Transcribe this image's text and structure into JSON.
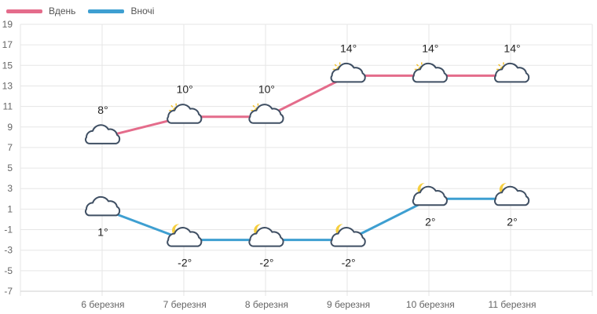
{
  "chart_data": {
    "type": "line",
    "categories": [
      "6 березня",
      "7 березня",
      "8 березня",
      "9 березня",
      "10 березня",
      "11 березня"
    ],
    "series": [
      {
        "name": "Вдень",
        "color": "#e46c8b",
        "values": [
          8,
          10,
          10,
          14,
          14,
          14
        ],
        "labels": [
          "8°",
          "10°",
          "10°",
          "14°",
          "14°",
          "14°"
        ],
        "icons": [
          "cloud-icon",
          "partly-sunny-cloud-icon",
          "partly-sunny-cloud-icon",
          "partly-sunny-cloud-icon",
          "partly-sunny-cloud-icon",
          "partly-sunny-cloud-icon"
        ]
      },
      {
        "name": "Вночі",
        "color": "#3e9fd1",
        "values": [
          1,
          -2,
          -2,
          -2,
          2,
          2
        ],
        "labels": [
          "1°",
          "-2°",
          "-2°",
          "-2°",
          "2°",
          "2°"
        ],
        "icons": [
          "cloud-icon",
          "moon-cloud-icon",
          "moon-cloud-icon",
          "moon-cloud-icon",
          "moon-cloud-icon",
          "moon-cloud-icon"
        ]
      }
    ],
    "ylim": [
      -7,
      19
    ],
    "yticks": [
      -7,
      -5,
      -3,
      -1,
      1,
      3,
      5,
      7,
      9,
      11,
      13,
      15,
      17,
      19
    ],
    "grid": true,
    "legend_position": "top-left"
  }
}
